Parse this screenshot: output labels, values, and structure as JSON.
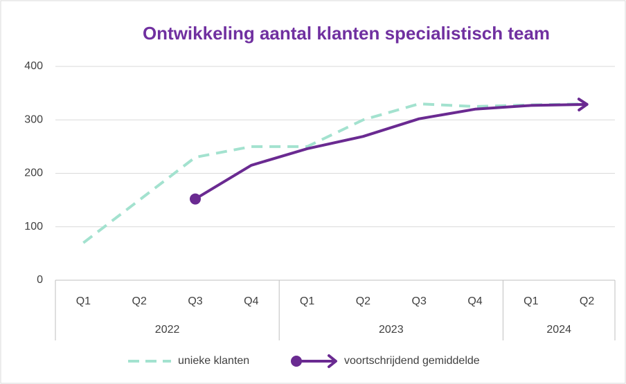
{
  "chart_data": {
    "type": "line",
    "title": "Ontwikkeling aantal klanten specialistisch team",
    "category_groups": [
      {
        "name": "2022",
        "categories": [
          "Q1",
          "Q2",
          "Q3",
          "Q4"
        ]
      },
      {
        "name": "2023",
        "categories": [
          "Q1",
          "Q2",
          "Q3",
          "Q4"
        ]
      },
      {
        "name": "2024",
        "categories": [
          "Q1",
          "Q2"
        ]
      }
    ],
    "series": [
      {
        "name": "unieke klanten",
        "color": "#a3e2cf",
        "dashed": true,
        "values": [
          70,
          150,
          230,
          250,
          250,
          300,
          330,
          325,
          328,
          330
        ]
      },
      {
        "name": "voortschrijdend gemiddelde",
        "color": "#6a2a91",
        "dashed": false,
        "values": [
          null,
          null,
          152,
          215,
          246,
          269,
          302,
          320,
          327,
          329
        ]
      }
    ],
    "ylim": [
      0,
      400
    ],
    "yticks": [
      0,
      100,
      200,
      300,
      400
    ],
    "grid": true,
    "legend": "bottom"
  }
}
